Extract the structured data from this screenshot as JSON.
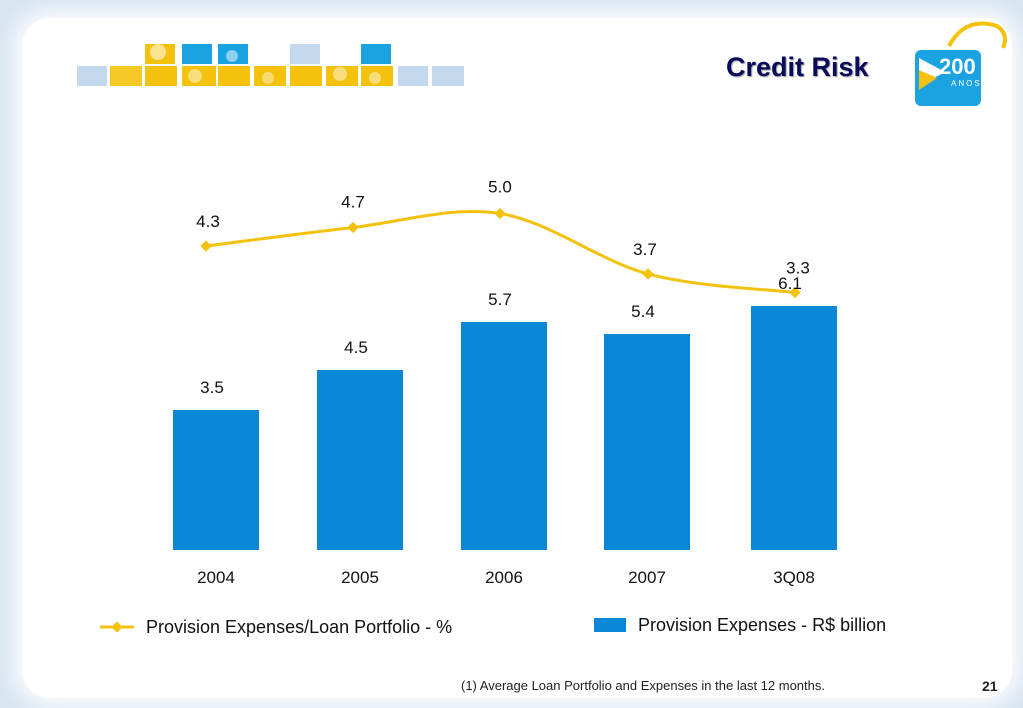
{
  "title": "Credit Risk",
  "logo": {
    "text": "200",
    "subtext": "ANOS"
  },
  "colors": {
    "bar": "#0a88d6",
    "line": "#f4c20d",
    "title": "#0a0a5c",
    "mosaic_yellow": "#f4c20d",
    "mosaic_blue": "#1aa3e0",
    "mosaic_light": "#c5d9ee"
  },
  "chart_data": {
    "type": "bar",
    "categories": [
      "2004",
      "2005",
      "2006",
      "2007",
      "3Q08"
    ],
    "series": [
      {
        "name": "Provision Expenses - R$ billion",
        "type": "bar",
        "values": [
          3.5,
          4.5,
          5.7,
          5.4,
          6.1
        ],
        "labels": [
          "3.5",
          "4.5",
          "5.7",
          "5.4",
          "6.1"
        ]
      },
      {
        "name": "Provision Expenses/Loan Portfolio - %",
        "type": "line",
        "values": [
          4.3,
          4.7,
          5.0,
          3.7,
          3.3
        ],
        "labels": [
          "4.3",
          "4.7",
          "5.0",
          "3.7",
          "3.3"
        ]
      }
    ],
    "legend": "bottom",
    "grid": false
  },
  "legend": {
    "line_label": "Provision Expenses/Loan Portfolio - %",
    "bar_label": "Provision Expenses - R$ billion"
  },
  "footnote": "(1) Average Loan Portfolio and Expenses in the last 12 months.",
  "page_number": "21"
}
